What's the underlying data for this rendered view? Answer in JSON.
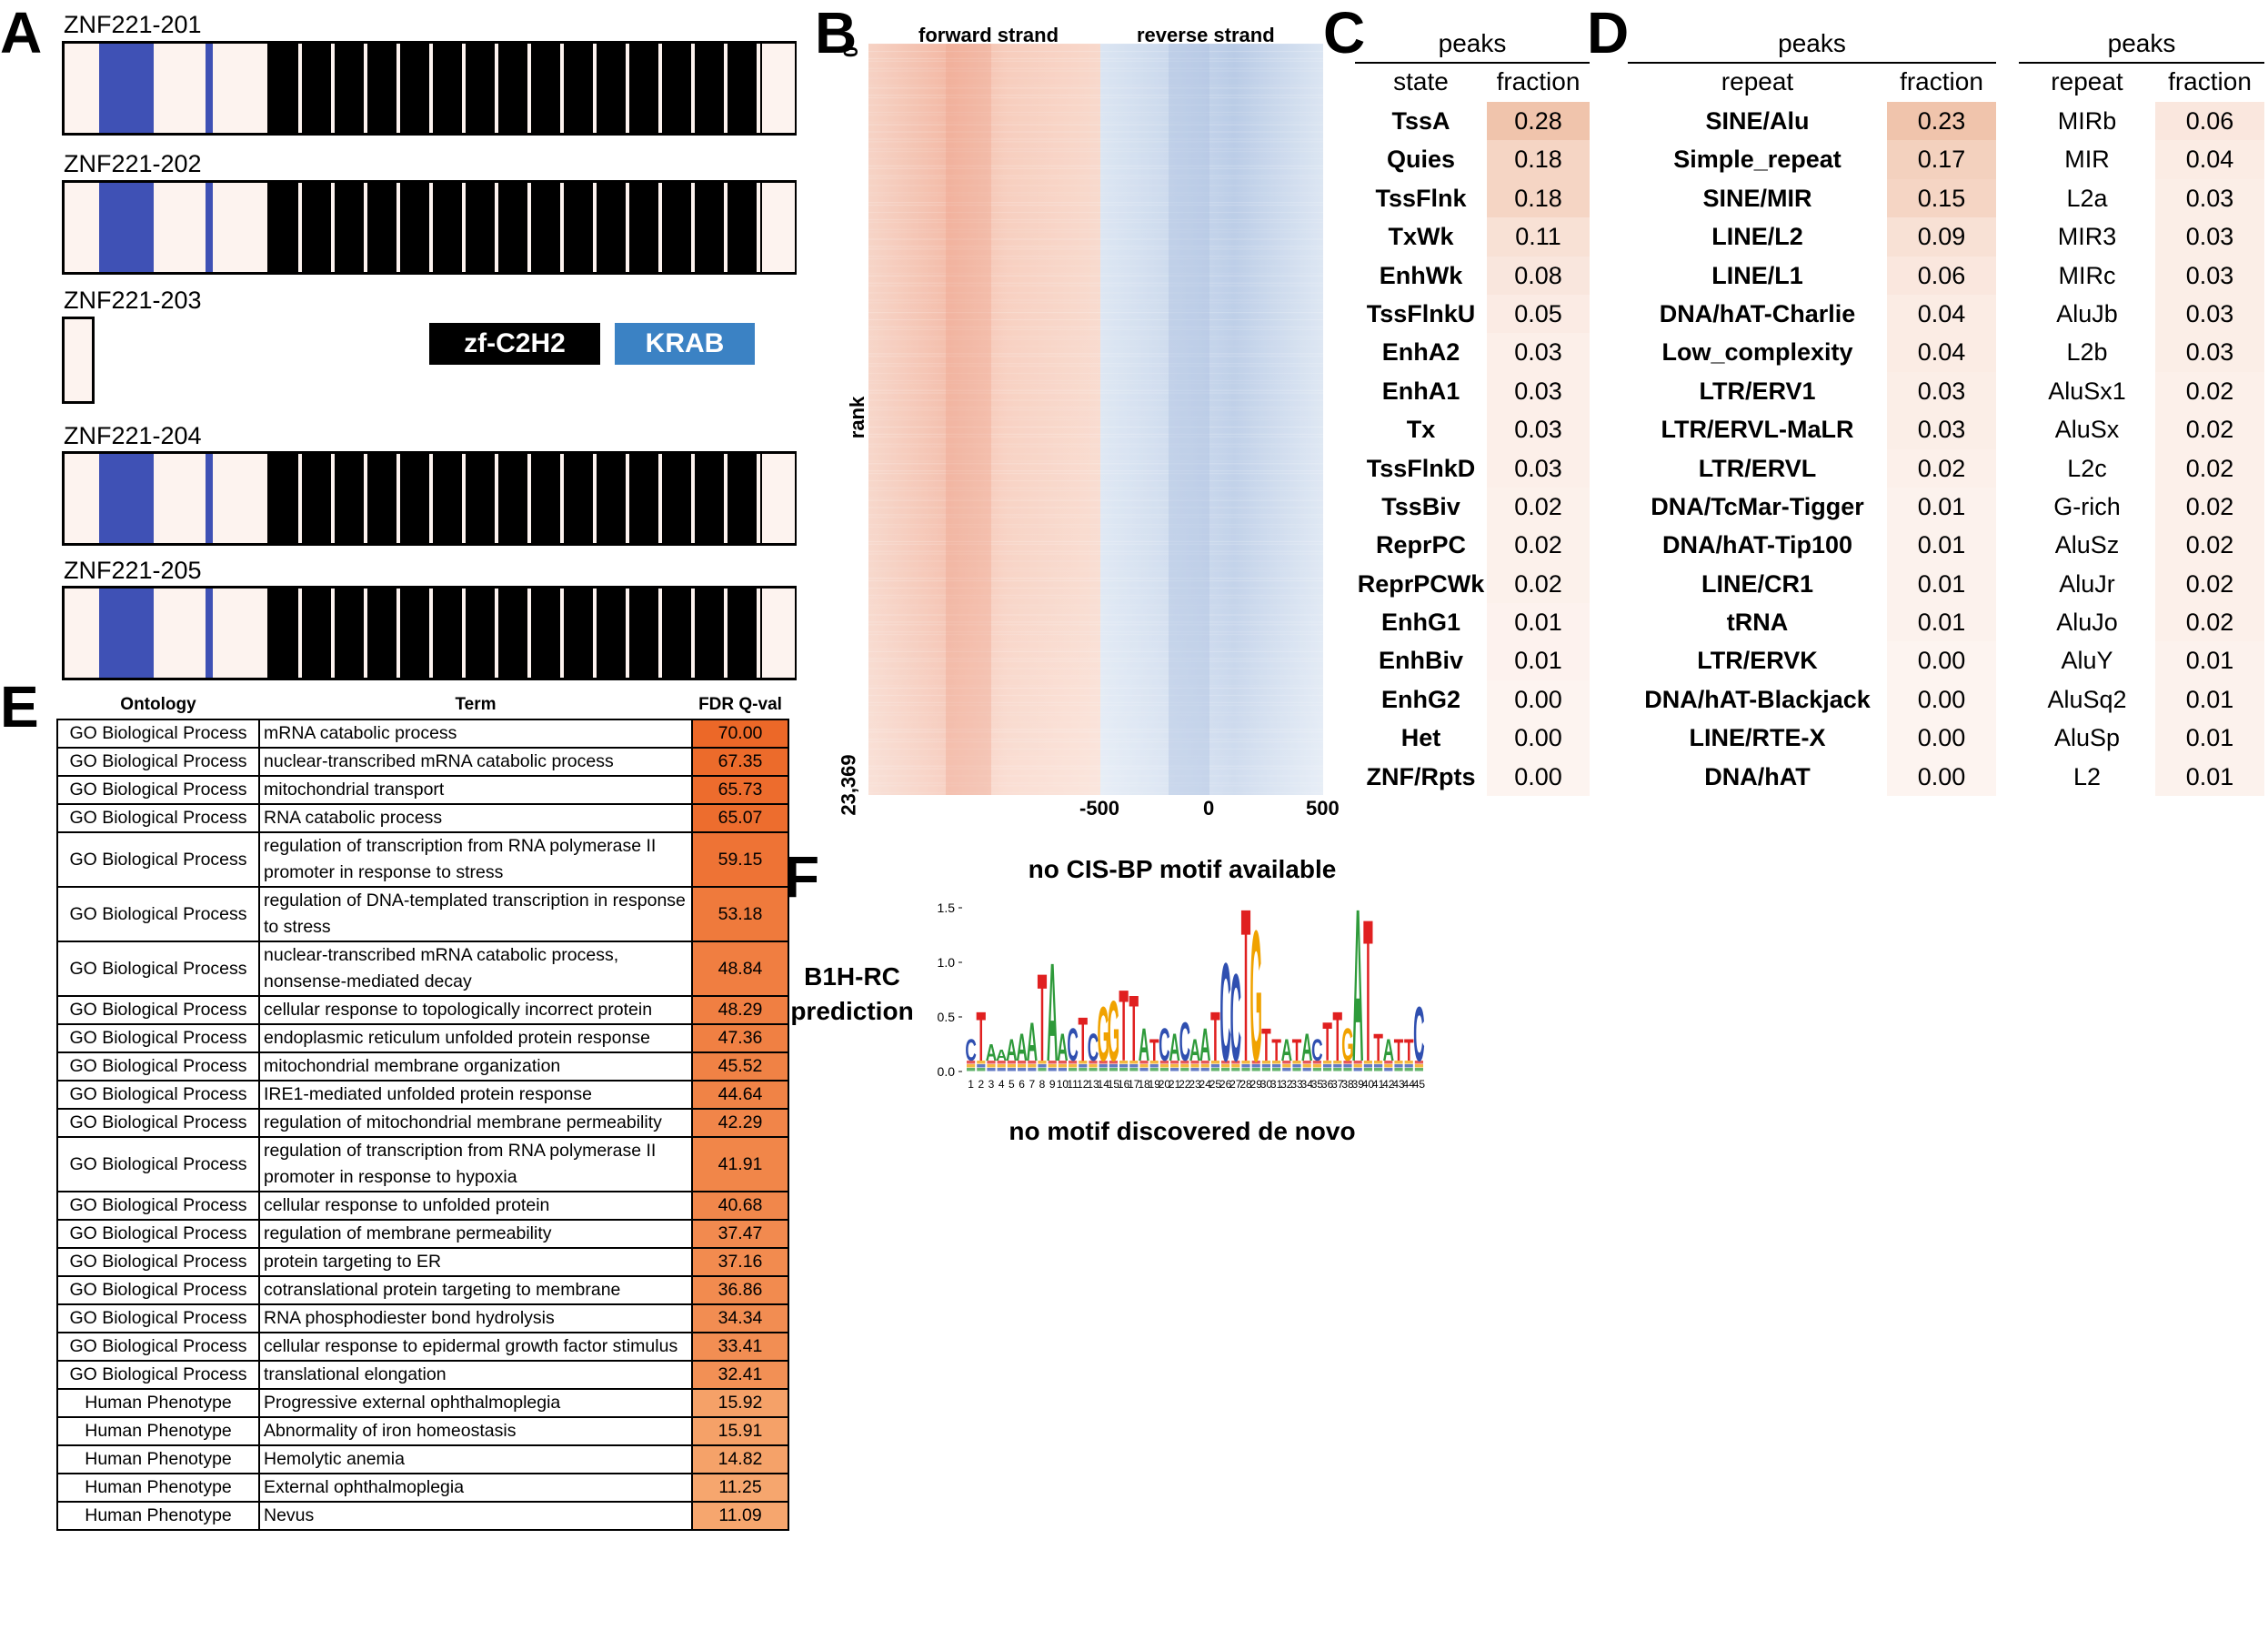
{
  "panels": {
    "A": "A",
    "B": "B",
    "C": "C",
    "D": "D",
    "E": "E",
    "F": "F"
  },
  "panel_a": {
    "isoforms": [
      {
        "name": "ZNF221-201",
        "full": true
      },
      {
        "name": "ZNF221-202",
        "full": true
      },
      {
        "name": "ZNF221-203",
        "full": false
      },
      {
        "name": "ZNF221-204",
        "full": true
      },
      {
        "name": "ZNF221-205",
        "full": true
      }
    ],
    "legend": {
      "zf": "zf-C2H2",
      "krab": "KRAB"
    },
    "colors": {
      "krab": "#3f51b5",
      "zf": "#000000",
      "background": "#fdf3ef",
      "krab_legend": "#3b82c4"
    }
  },
  "panel_b": {
    "title_forward": "forward strand",
    "title_reverse": "reverse strand",
    "rank_label": "rank",
    "rank_top": "0",
    "rank_bottom": "23,369",
    "x_ticks": [
      "-500",
      "0",
      "500"
    ],
    "colors": {
      "forward": "#f2b9a6",
      "reverse": "#b9cbe6"
    }
  },
  "panel_c": {
    "peaks_label": "peaks",
    "col_state": "state",
    "col_fraction": "fraction",
    "rows": [
      {
        "name": "TssA",
        "value": "0.28"
      },
      {
        "name": "Quies",
        "value": "0.18"
      },
      {
        "name": "TssFlnk",
        "value": "0.18"
      },
      {
        "name": "TxWk",
        "value": "0.11"
      },
      {
        "name": "EnhWk",
        "value": "0.08"
      },
      {
        "name": "TssFlnkU",
        "value": "0.05"
      },
      {
        "name": "EnhA2",
        "value": "0.03"
      },
      {
        "name": "EnhA1",
        "value": "0.03"
      },
      {
        "name": "Tx",
        "value": "0.03"
      },
      {
        "name": "TssFlnkD",
        "value": "0.03"
      },
      {
        "name": "TssBiv",
        "value": "0.02"
      },
      {
        "name": "ReprPC",
        "value": "0.02"
      },
      {
        "name": "ReprPCWk",
        "value": "0.02"
      },
      {
        "name": "EnhG1",
        "value": "0.01"
      },
      {
        "name": "EnhBiv",
        "value": "0.01"
      },
      {
        "name": "EnhG2",
        "value": "0.00"
      },
      {
        "name": "Het",
        "value": "0.00"
      },
      {
        "name": "ZNF/Rpts",
        "value": "0.00"
      }
    ]
  },
  "panel_d_left": {
    "peaks_label": "peaks",
    "col_repeat": "repeat",
    "col_fraction": "fraction",
    "rows": [
      {
        "name": "SINE/Alu",
        "value": "0.23"
      },
      {
        "name": "Simple_repeat",
        "value": "0.17"
      },
      {
        "name": "SINE/MIR",
        "value": "0.15"
      },
      {
        "name": "LINE/L2",
        "value": "0.09"
      },
      {
        "name": "LINE/L1",
        "value": "0.06"
      },
      {
        "name": "DNA/hAT-Charlie",
        "value": "0.04"
      },
      {
        "name": "Low_complexity",
        "value": "0.04"
      },
      {
        "name": "LTR/ERV1",
        "value": "0.03"
      },
      {
        "name": "LTR/ERVL-MaLR",
        "value": "0.03"
      },
      {
        "name": "LTR/ERVL",
        "value": "0.02"
      },
      {
        "name": "DNA/TcMar-Tigger",
        "value": "0.01"
      },
      {
        "name": "DNA/hAT-Tip100",
        "value": "0.01"
      },
      {
        "name": "LINE/CR1",
        "value": "0.01"
      },
      {
        "name": "tRNA",
        "value": "0.01"
      },
      {
        "name": "LTR/ERVK",
        "value": "0.00"
      },
      {
        "name": "DNA/hAT-Blackjack",
        "value": "0.00"
      },
      {
        "name": "LINE/RTE-X",
        "value": "0.00"
      },
      {
        "name": "DNA/hAT",
        "value": "0.00"
      }
    ]
  },
  "panel_d_right": {
    "peaks_label": "peaks",
    "col_repeat": "repeat",
    "col_fraction": "fraction",
    "rows": [
      {
        "name": "MIRb",
        "value": "0.06"
      },
      {
        "name": "MIR",
        "value": "0.04"
      },
      {
        "name": "L2a",
        "value": "0.03"
      },
      {
        "name": "MIR3",
        "value": "0.03"
      },
      {
        "name": "MIRc",
        "value": "0.03"
      },
      {
        "name": "AluJb",
        "value": "0.03"
      },
      {
        "name": "L2b",
        "value": "0.03"
      },
      {
        "name": "AluSx1",
        "value": "0.02"
      },
      {
        "name": "AluSx",
        "value": "0.02"
      },
      {
        "name": "L2c",
        "value": "0.02"
      },
      {
        "name": "G-rich",
        "value": "0.02"
      },
      {
        "name": "AluSz",
        "value": "0.02"
      },
      {
        "name": "AluJr",
        "value": "0.02"
      },
      {
        "name": "AluJo",
        "value": "0.02"
      },
      {
        "name": "AluY",
        "value": "0.01"
      },
      {
        "name": "AluSq2",
        "value": "0.01"
      },
      {
        "name": "AluSp",
        "value": "0.01"
      },
      {
        "name": "L2",
        "value": "0.01"
      }
    ]
  },
  "panel_e": {
    "headers": {
      "ontology": "Ontology",
      "term": "Term",
      "fdr": "FDR Q-val"
    },
    "rows": [
      {
        "ontology": "GO Biological Process",
        "term": "mRNA catabolic process",
        "fdr": "70.00"
      },
      {
        "ontology": "GO Biological Process",
        "term": "nuclear-transcribed mRNA catabolic process",
        "fdr": "67.35"
      },
      {
        "ontology": "GO Biological Process",
        "term": "mitochondrial transport",
        "fdr": "65.73"
      },
      {
        "ontology": "GO Biological Process",
        "term": "RNA catabolic process",
        "fdr": "65.07"
      },
      {
        "ontology": "GO Biological Process",
        "term": "regulation of transcription from RNA polymerase II promoter in response to stress",
        "fdr": "59.15"
      },
      {
        "ontology": "GO Biological Process",
        "term": "regulation of DNA-templated transcription in response to stress",
        "fdr": "53.18"
      },
      {
        "ontology": "GO Biological Process",
        "term": "nuclear-transcribed mRNA catabolic process, nonsense-mediated decay",
        "fdr": "48.84"
      },
      {
        "ontology": "GO Biological Process",
        "term": "cellular response to topologically incorrect protein",
        "fdr": "48.29"
      },
      {
        "ontology": "GO Biological Process",
        "term": "endoplasmic reticulum unfolded protein response",
        "fdr": "47.36"
      },
      {
        "ontology": "GO Biological Process",
        "term": "mitochondrial membrane organization",
        "fdr": "45.52"
      },
      {
        "ontology": "GO Biological Process",
        "term": "IRE1-mediated unfolded protein response",
        "fdr": "44.64"
      },
      {
        "ontology": "GO Biological Process",
        "term": "regulation of mitochondrial membrane permeability",
        "fdr": "42.29"
      },
      {
        "ontology": "GO Biological Process",
        "term": "regulation of transcription from RNA polymerase II promoter in response to hypoxia",
        "fdr": "41.91"
      },
      {
        "ontology": "GO Biological Process",
        "term": "cellular response to unfolded protein",
        "fdr": "40.68"
      },
      {
        "ontology": "GO Biological Process",
        "term": "regulation of membrane permeability",
        "fdr": "37.47"
      },
      {
        "ontology": "GO Biological Process",
        "term": "protein targeting to ER",
        "fdr": "37.16"
      },
      {
        "ontology": "GO Biological Process",
        "term": "cotranslational protein targeting to membrane",
        "fdr": "36.86"
      },
      {
        "ontology": "GO Biological Process",
        "term": "RNA phosphodiester bond hydrolysis",
        "fdr": "34.34"
      },
      {
        "ontology": "GO Biological Process",
        "term": "cellular response to epidermal growth factor stimulus",
        "fdr": "33.41"
      },
      {
        "ontology": "GO Biological Process",
        "term": "translational elongation",
        "fdr": "32.41"
      },
      {
        "ontology": "Human Phenotype",
        "term": "Progressive external ophthalmoplegia",
        "fdr": "15.92"
      },
      {
        "ontology": "Human Phenotype",
        "term": "Abnormality of iron homeostasis",
        "fdr": "15.91"
      },
      {
        "ontology": "Human Phenotype",
        "term": "Hemolytic anemia",
        "fdr": "14.82"
      },
      {
        "ontology": "Human Phenotype",
        "term": "External ophthalmoplegia",
        "fdr": "11.25"
      },
      {
        "ontology": "Human Phenotype",
        "term": "Nevus",
        "fdr": "11.09"
      }
    ]
  },
  "panel_f": {
    "cisbp": "no CIS-BP motif available",
    "b1h_line1": "B1H-RC",
    "b1h_line2": "prediction",
    "denovo": "no motif discovered de novo",
    "y_ticks": [
      "1.5",
      "1.0",
      "0.5",
      "0.0"
    ],
    "x_ticks": [
      "1",
      "2",
      "3",
      "4",
      "5",
      "6",
      "7",
      "8",
      "9",
      "10",
      "11",
      "12",
      "13",
      "14",
      "15",
      "16",
      "17",
      "18",
      "19",
      "20",
      "21",
      "22",
      "23",
      "24",
      "25",
      "26",
      "27",
      "28",
      "29",
      "30",
      "31",
      "32",
      "33",
      "34",
      "35",
      "36",
      "37",
      "38",
      "39",
      "40",
      "41",
      "42",
      "43",
      "44",
      "45"
    ],
    "consensus": [
      "C",
      "T",
      "A",
      "A",
      "A",
      "A",
      "A",
      "T",
      "A",
      "A",
      "C",
      "T",
      "C",
      "G",
      "G",
      "T",
      "T",
      "A",
      "T",
      "C",
      "A",
      "C",
      "A",
      "A",
      "T",
      "C",
      "C",
      "T",
      "G",
      "T",
      "T",
      "A",
      "T",
      "A",
      "C",
      "T",
      "T",
      "G",
      "A",
      "T",
      "T",
      "A",
      "T",
      "T",
      "C"
    ],
    "heights": [
      0.3,
      0.55,
      0.25,
      0.2,
      0.3,
      0.35,
      0.45,
      0.9,
      1.0,
      0.35,
      0.4,
      0.5,
      0.35,
      0.6,
      0.65,
      0.75,
      0.7,
      0.4,
      0.3,
      0.4,
      0.35,
      0.45,
      0.3,
      0.4,
      0.55,
      1.0,
      0.9,
      1.5,
      1.3,
      0.4,
      0.3,
      0.3,
      0.3,
      0.35,
      0.3,
      0.45,
      0.55,
      0.4,
      1.5,
      1.4,
      0.35,
      0.3,
      0.3,
      0.3,
      0.6
    ],
    "base_colors": {
      "A": "#2e9a3a",
      "C": "#2f4fb0",
      "G": "#f0a200",
      "T": "#e02020"
    }
  }
}
